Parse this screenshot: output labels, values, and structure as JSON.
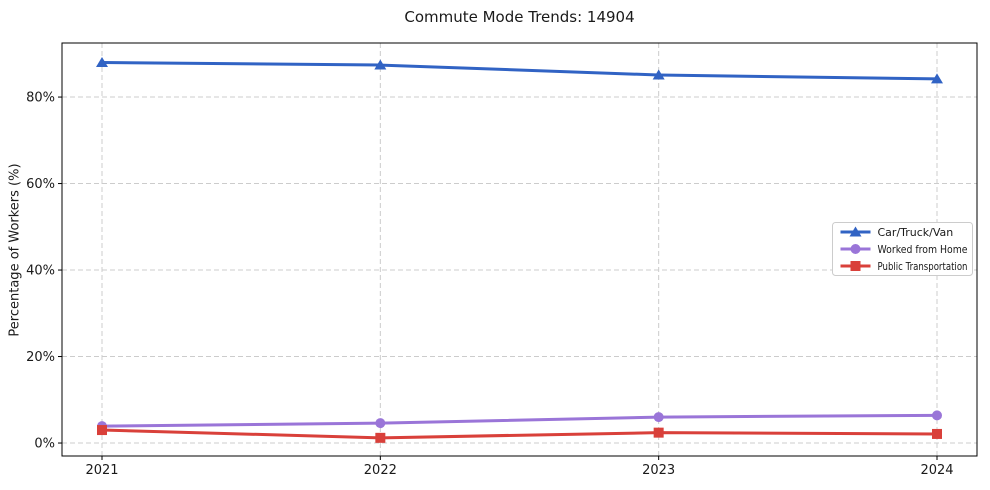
{
  "chart_data": {
    "type": "line",
    "title": "Commute Mode Trends: 14904",
    "xlabel": "",
    "ylabel": "Percentage of Workers (%)",
    "x": [
      2021,
      2022,
      2023,
      2024
    ],
    "x_tick_labels": [
      "2021",
      "2022",
      "2023",
      "2024"
    ],
    "y_ticks": [
      0,
      20,
      40,
      60,
      80
    ],
    "y_tick_labels": [
      "0%",
      "20%",
      "40%",
      "60%",
      "80%"
    ],
    "ylim": [
      -3,
      92.5
    ],
    "grid": {
      "visible": true,
      "style": "dashed",
      "color": "#cccccc",
      "axes": "both"
    },
    "legend": {
      "position": "center right",
      "border_color": "#cccccc",
      "background": "#ffffff"
    },
    "series": [
      {
        "name": "Car/Truck/Van",
        "marker": "triangle-up",
        "color": "#3163c4",
        "values": [
          88.0,
          87.4,
          85.1,
          84.2
        ]
      },
      {
        "name": "Worked from Home",
        "marker": "circle",
        "color": "#9a75d8",
        "values": [
          3.9,
          4.6,
          6.0,
          6.4
        ]
      },
      {
        "name": "Public Transportation",
        "marker": "square",
        "color": "#d9403a",
        "values": [
          3.0,
          1.2,
          2.4,
          2.1
        ]
      }
    ],
    "spine_color": "#000000",
    "text_color": "#1a1a1a"
  }
}
